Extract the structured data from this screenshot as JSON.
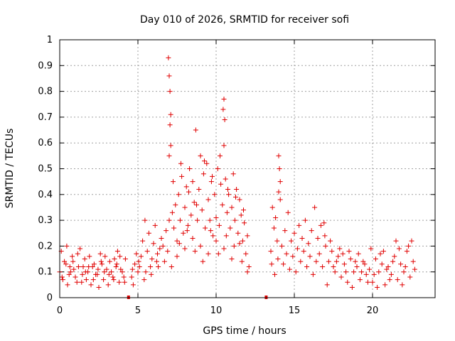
{
  "chart_data": {
    "type": "scatter",
    "title": "Day 010 of 2026, SRMTID for receiver sofi",
    "xlabel": "GPS time / hours",
    "ylabel": "SRMTID / TECUs",
    "xlim": [
      0,
      24.0
    ],
    "ylim": [
      0,
      1
    ],
    "xticks": [
      0,
      5,
      10,
      15,
      20
    ],
    "yticks": [
      0,
      0.1,
      0.2,
      0.3,
      0.4,
      0.5,
      0.6,
      0.7,
      0.8,
      0.9,
      1
    ],
    "grid": true,
    "marker": "+",
    "marker_color": "#e00000",
    "gap_markers": [
      4.4,
      13.2
    ],
    "series": [
      {
        "name": "SRMTID",
        "points": [
          [
            0.0,
            0.1
          ],
          [
            0.2,
            0.07
          ],
          [
            0.4,
            0.13
          ],
          [
            0.6,
            0.09
          ],
          [
            0.8,
            0.16
          ],
          [
            1.0,
            0.08
          ],
          [
            1.2,
            0.12
          ],
          [
            1.4,
            0.06
          ],
          [
            1.6,
            0.15
          ],
          [
            1.8,
            0.1
          ],
          [
            2.0,
            0.05
          ],
          [
            2.2,
            0.13
          ],
          [
            2.4,
            0.09
          ],
          [
            2.6,
            0.17
          ],
          [
            2.8,
            0.07
          ],
          [
            3.0,
            0.11
          ],
          [
            3.2,
            0.14
          ],
          [
            3.4,
            0.08
          ],
          [
            3.6,
            0.12
          ],
          [
            3.8,
            0.06
          ],
          [
            4.0,
            0.1
          ],
          [
            4.2,
            0.15
          ],
          [
            0.1,
            0.18
          ],
          [
            0.5,
            0.05
          ],
          [
            0.9,
            0.11
          ],
          [
            1.3,
            0.19
          ],
          [
            1.7,
            0.07
          ],
          [
            2.1,
            0.12
          ],
          [
            2.5,
            0.04
          ],
          [
            2.9,
            0.16
          ],
          [
            3.3,
            0.1
          ],
          [
            3.7,
            0.18
          ],
          [
            4.1,
            0.08
          ],
          [
            0.3,
            0.14
          ],
          [
            0.7,
            0.1
          ],
          [
            1.1,
            0.06
          ],
          [
            1.5,
            0.12
          ],
          [
            1.9,
            0.16
          ],
          [
            2.3,
            0.09
          ],
          [
            2.7,
            0.13
          ],
          [
            3.1,
            0.05
          ],
          [
            3.5,
            0.15
          ],
          [
            3.9,
            0.11
          ],
          [
            0.15,
            0.08
          ],
          [
            0.65,
            0.12
          ],
          [
            1.15,
            0.17
          ],
          [
            1.65,
            0.1
          ],
          [
            2.15,
            0.07
          ],
          [
            2.65,
            0.14
          ],
          [
            3.15,
            0.09
          ],
          [
            3.65,
            0.13
          ],
          [
            4.15,
            0.06
          ],
          [
            0.45,
            0.2
          ],
          [
            1.45,
            0.09
          ],
          [
            2.45,
            0.11
          ],
          [
            3.45,
            0.07
          ],
          [
            0.85,
            0.14
          ],
          [
            1.85,
            0.12
          ],
          [
            2.85,
            0.1
          ],
          [
            3.85,
            0.16
          ],
          [
            4.6,
            0.08
          ],
          [
            4.8,
            0.13
          ],
          [
            5.0,
            0.1
          ],
          [
            5.2,
            0.16
          ],
          [
            5.4,
            0.07
          ],
          [
            5.6,
            0.18
          ],
          [
            5.8,
            0.12
          ],
          [
            6.0,
            0.21
          ],
          [
            6.2,
            0.14
          ],
          [
            6.4,
            0.19
          ],
          [
            4.7,
            0.05
          ],
          [
            4.9,
            0.17
          ],
          [
            5.1,
            0.12
          ],
          [
            5.3,
            0.22
          ],
          [
            5.5,
            0.1
          ],
          [
            5.7,
            0.25
          ],
          [
            5.9,
            0.15
          ],
          [
            6.1,
            0.28
          ],
          [
            6.3,
            0.12
          ],
          [
            6.5,
            0.23
          ],
          [
            4.65,
            0.11
          ],
          [
            5.05,
            0.14
          ],
          [
            5.45,
            0.3
          ],
          [
            5.85,
            0.09
          ],
          [
            6.25,
            0.17
          ],
          [
            6.6,
            0.2
          ],
          [
            6.7,
            0.14
          ],
          [
            6.8,
            0.26
          ],
          [
            6.9,
            0.18
          ],
          [
            7.0,
            0.3
          ],
          [
            6.95,
            0.93
          ],
          [
            7.0,
            0.86
          ],
          [
            7.05,
            0.8
          ],
          [
            7.1,
            0.71
          ],
          [
            7.05,
            0.67
          ],
          [
            7.1,
            0.59
          ],
          [
            7.0,
            0.55
          ],
          [
            7.2,
            0.33
          ],
          [
            7.3,
            0.27
          ],
          [
            7.4,
            0.36
          ],
          [
            7.5,
            0.22
          ],
          [
            7.6,
            0.4
          ],
          [
            7.7,
            0.3
          ],
          [
            7.8,
            0.47
          ],
          [
            7.9,
            0.25
          ],
          [
            8.0,
            0.35
          ],
          [
            8.1,
            0.43
          ],
          [
            8.2,
            0.28
          ],
          [
            8.3,
            0.5
          ],
          [
            8.4,
            0.32
          ],
          [
            8.5,
            0.45
          ],
          [
            8.6,
            0.37
          ],
          [
            8.7,
            0.65
          ],
          [
            8.8,
            0.3
          ],
          [
            8.9,
            0.42
          ],
          [
            9.0,
            0.55
          ],
          [
            9.1,
            0.34
          ],
          [
            9.2,
            0.48
          ],
          [
            9.3,
            0.27
          ],
          [
            9.4,
            0.52
          ],
          [
            9.5,
            0.38
          ],
          [
            9.6,
            0.3
          ],
          [
            9.7,
            0.45
          ],
          [
            9.8,
            0.24
          ],
          [
            9.9,
            0.4
          ],
          [
            10.0,
            0.31
          ],
          [
            10.1,
            0.5
          ],
          [
            10.2,
            0.28
          ],
          [
            10.3,
            0.44
          ],
          [
            10.4,
            0.36
          ],
          [
            10.5,
            0.77
          ],
          [
            10.45,
            0.73
          ],
          [
            10.55,
            0.69
          ],
          [
            10.5,
            0.59
          ],
          [
            10.6,
            0.46
          ],
          [
            10.7,
            0.33
          ],
          [
            10.8,
            0.4
          ],
          [
            10.9,
            0.27
          ],
          [
            11.0,
            0.35
          ],
          [
            11.1,
            0.48
          ],
          [
            11.2,
            0.3
          ],
          [
            11.3,
            0.42
          ],
          [
            11.4,
            0.25
          ],
          [
            11.5,
            0.38
          ],
          [
            11.6,
            0.32
          ],
          [
            11.7,
            0.22
          ],
          [
            11.8,
            0.29
          ],
          [
            11.9,
            0.17
          ],
          [
            12.0,
            0.24
          ],
          [
            12.1,
            0.12
          ],
          [
            7.5,
            0.16
          ],
          [
            8.0,
            0.19
          ],
          [
            8.5,
            0.23
          ],
          [
            9.0,
            0.2
          ],
          [
            9.5,
            0.17
          ],
          [
            10.0,
            0.22
          ],
          [
            10.5,
            0.19
          ],
          [
            11.0,
            0.15
          ],
          [
            11.5,
            0.21
          ],
          [
            12.0,
            0.1
          ],
          [
            7.25,
            0.45
          ],
          [
            7.75,
            0.52
          ],
          [
            8.25,
            0.41
          ],
          [
            8.75,
            0.36
          ],
          [
            9.25,
            0.53
          ],
          [
            9.75,
            0.47
          ],
          [
            10.25,
            0.55
          ],
          [
            10.75,
            0.42
          ],
          [
            11.25,
            0.39
          ],
          [
            11.75,
            0.34
          ],
          [
            7.15,
            0.12
          ],
          [
            7.65,
            0.21
          ],
          [
            8.15,
            0.26
          ],
          [
            8.65,
            0.18
          ],
          [
            9.15,
            0.14
          ],
          [
            9.65,
            0.26
          ],
          [
            10.15,
            0.17
          ],
          [
            10.65,
            0.24
          ],
          [
            11.15,
            0.2
          ],
          [
            11.65,
            0.14
          ],
          [
            13.5,
            0.18
          ],
          [
            13.6,
            0.35
          ],
          [
            13.7,
            0.27
          ],
          [
            13.8,
            0.31
          ],
          [
            13.9,
            0.22
          ],
          [
            14.0,
            0.55
          ],
          [
            14.05,
            0.5
          ],
          [
            14.1,
            0.45
          ],
          [
            14.0,
            0.41
          ],
          [
            14.1,
            0.38
          ],
          [
            13.55,
            0.13
          ],
          [
            13.75,
            0.09
          ],
          [
            13.95,
            0.15
          ],
          [
            14.2,
            0.2
          ],
          [
            14.3,
            0.13
          ],
          [
            14.4,
            0.26
          ],
          [
            14.5,
            0.17
          ],
          [
            14.6,
            0.33
          ],
          [
            14.7,
            0.11
          ],
          [
            14.8,
            0.22
          ],
          [
            14.9,
            0.16
          ],
          [
            15.0,
            0.25
          ],
          [
            15.1,
            0.1
          ],
          [
            15.2,
            0.19
          ],
          [
            15.3,
            0.28
          ],
          [
            15.4,
            0.14
          ],
          [
            15.5,
            0.23
          ],
          [
            15.6,
            0.18
          ],
          [
            15.7,
            0.3
          ],
          [
            15.8,
            0.12
          ],
          [
            15.9,
            0.21
          ],
          [
            16.0,
            0.16
          ],
          [
            16.1,
            0.26
          ],
          [
            16.2,
            0.09
          ],
          [
            16.3,
            0.35
          ],
          [
            16.4,
            0.14
          ],
          [
            16.5,
            0.23
          ],
          [
            16.6,
            0.17
          ],
          [
            16.7,
            0.28
          ],
          [
            16.8,
            0.12
          ],
          [
            16.9,
            0.29
          ],
          [
            17.0,
            0.2
          ],
          [
            17.2,
            0.14
          ],
          [
            17.4,
            0.18
          ],
          [
            17.6,
            0.1
          ],
          [
            17.8,
            0.16
          ],
          [
            18.0,
            0.08
          ],
          [
            18.2,
            0.13
          ],
          [
            18.4,
            0.06
          ],
          [
            18.6,
            0.15
          ],
          [
            18.8,
            0.1
          ],
          [
            19.0,
            0.12
          ],
          [
            19.2,
            0.07
          ],
          [
            19.4,
            0.14
          ],
          [
            19.6,
            0.09
          ],
          [
            19.8,
            0.11
          ],
          [
            20.0,
            0.06
          ],
          [
            20.2,
            0.15
          ],
          [
            20.4,
            0.1
          ],
          [
            20.6,
            0.13
          ],
          [
            20.8,
            0.05
          ],
          [
            21.0,
            0.12
          ],
          [
            21.2,
            0.09
          ],
          [
            21.4,
            0.16
          ],
          [
            21.6,
            0.07
          ],
          [
            21.8,
            0.13
          ],
          [
            22.0,
            0.1
          ],
          [
            22.2,
            0.18
          ],
          [
            22.4,
            0.08
          ],
          [
            22.6,
            0.14
          ],
          [
            17.1,
            0.05
          ],
          [
            17.5,
            0.12
          ],
          [
            17.9,
            0.19
          ],
          [
            18.3,
            0.1
          ],
          [
            18.7,
            0.04
          ],
          [
            19.1,
            0.17
          ],
          [
            19.5,
            0.13
          ],
          [
            19.9,
            0.19
          ],
          [
            20.3,
            0.04
          ],
          [
            20.7,
            0.18
          ],
          [
            21.1,
            0.07
          ],
          [
            21.5,
            0.22
          ],
          [
            21.9,
            0.05
          ],
          [
            22.3,
            0.2
          ],
          [
            22.7,
            0.11
          ],
          [
            17.3,
            0.22
          ],
          [
            18.1,
            0.17
          ],
          [
            18.9,
            0.14
          ],
          [
            19.7,
            0.06
          ],
          [
            20.5,
            0.17
          ],
          [
            21.3,
            0.14
          ],
          [
            22.1,
            0.12
          ],
          [
            22.5,
            0.22
          ],
          [
            21.7,
            0.19
          ],
          [
            20.9,
            0.11
          ],
          [
            20.1,
            0.09
          ],
          [
            19.3,
            0.1
          ],
          [
            18.5,
            0.18
          ],
          [
            17.7,
            0.14
          ],
          [
            16.95,
            0.24
          ]
        ]
      }
    ]
  }
}
